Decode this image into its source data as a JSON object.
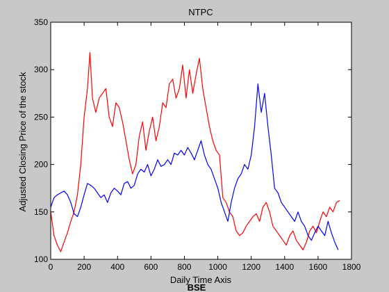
{
  "chart_data": {
    "type": "line",
    "title": "NTPC",
    "xlabel": "Daily Time Axis",
    "ylabel": "Adjusted Closing Price of the stock",
    "caption": "BSE",
    "xlim": [
      0,
      1800
    ],
    "ylim": [
      100,
      350
    ],
    "xticks": [
      0,
      200,
      400,
      600,
      800,
      1000,
      1200,
      1400,
      1600,
      1800
    ],
    "yticks": [
      100,
      150,
      200,
      250,
      300,
      350
    ],
    "grid": false,
    "background_color": "#c8c8c8",
    "plot_color": "#ffffff",
    "series": [
      {
        "color": "#ff0000",
        "x": [
          0,
          20,
          40,
          60,
          80,
          100,
          120,
          140,
          160,
          180,
          200,
          220,
          235,
          250,
          270,
          290,
          310,
          330,
          350,
          370,
          390,
          410,
          430,
          450,
          470,
          490,
          510,
          530,
          550,
          570,
          590,
          610,
          630,
          650,
          670,
          690,
          710,
          730,
          750,
          770,
          790,
          810,
          830,
          850,
          870,
          890,
          910,
          930,
          950,
          970,
          990,
          1010,
          1030,
          1050,
          1070,
          1090,
          1110,
          1130,
          1150,
          1170,
          1190,
          1210,
          1230,
          1250,
          1270,
          1290,
          1310,
          1330,
          1350,
          1370,
          1390,
          1410,
          1430,
          1450,
          1470,
          1490,
          1510,
          1530,
          1550,
          1570,
          1590,
          1610,
          1630,
          1650,
          1670,
          1690,
          1710,
          1730
        ],
        "y": [
          150,
          125,
          115,
          108,
          118,
          128,
          140,
          150,
          168,
          200,
          250,
          280,
          318,
          270,
          255,
          270,
          275,
          280,
          250,
          240,
          265,
          260,
          245,
          225,
          205,
          190,
          200,
          230,
          245,
          215,
          235,
          250,
          225,
          240,
          265,
          260,
          285,
          290,
          270,
          280,
          305,
          270,
          300,
          275,
          295,
          312,
          280,
          260,
          240,
          225,
          215,
          210,
          165,
          160,
          150,
          145,
          130,
          125,
          128,
          135,
          140,
          145,
          148,
          140,
          155,
          160,
          150,
          135,
          130,
          125,
          120,
          115,
          125,
          130,
          120,
          115,
          110,
          118,
          130,
          135,
          128,
          140,
          150,
          145,
          155,
          150,
          160,
          162
        ]
      },
      {
        "color": "#0000ff",
        "x": [
          0,
          20,
          40,
          60,
          80,
          100,
          120,
          140,
          160,
          180,
          200,
          220,
          240,
          260,
          280,
          300,
          320,
          340,
          360,
          380,
          400,
          420,
          440,
          460,
          480,
          500,
          520,
          540,
          560,
          580,
          600,
          620,
          640,
          660,
          680,
          700,
          720,
          740,
          760,
          780,
          800,
          820,
          840,
          860,
          880,
          900,
          920,
          940,
          960,
          980,
          1000,
          1020,
          1040,
          1060,
          1080,
          1100,
          1120,
          1140,
          1160,
          1180,
          1200,
          1220,
          1240,
          1260,
          1280,
          1300,
          1320,
          1340,
          1360,
          1380,
          1400,
          1420,
          1440,
          1460,
          1480,
          1500,
          1520,
          1540,
          1560,
          1580,
          1600,
          1620,
          1640,
          1660,
          1680,
          1700,
          1720
        ],
        "y": [
          155,
          165,
          168,
          170,
          172,
          168,
          160,
          148,
          145,
          155,
          168,
          180,
          178,
          175,
          170,
          165,
          168,
          160,
          170,
          175,
          172,
          168,
          180,
          182,
          175,
          178,
          190,
          195,
          192,
          200,
          188,
          195,
          205,
          198,
          200,
          205,
          200,
          212,
          210,
          215,
          210,
          218,
          212,
          205,
          215,
          225,
          210,
          200,
          195,
          185,
          175,
          160,
          150,
          140,
          160,
          175,
          185,
          190,
          200,
          195,
          210,
          240,
          285,
          255,
          275,
          240,
          210,
          175,
          170,
          160,
          155,
          150,
          145,
          140,
          150,
          140,
          135,
          125,
          120,
          128,
          135,
          130,
          125,
          140,
          128,
          118,
          110
        ]
      }
    ]
  }
}
